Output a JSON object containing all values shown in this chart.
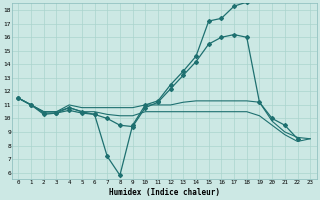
{
  "xlabel": "Humidex (Indice chaleur)",
  "bg_color": "#cce8e4",
  "grid_color": "#aad4ce",
  "line_color": "#1e7070",
  "xlim": [
    -0.5,
    23.5
  ],
  "ylim": [
    5.5,
    18.5
  ],
  "xticks": [
    0,
    1,
    2,
    3,
    4,
    5,
    6,
    7,
    8,
    9,
    10,
    11,
    12,
    13,
    14,
    15,
    16,
    17,
    18,
    19,
    20,
    21,
    22,
    23
  ],
  "yticks": [
    6,
    7,
    8,
    9,
    10,
    11,
    12,
    13,
    14,
    15,
    16,
    17,
    18
  ],
  "lines": [
    {
      "x": [
        0,
        1,
        2,
        3,
        4,
        5,
        6,
        7,
        8,
        9,
        10,
        11,
        12,
        13,
        14,
        15,
        16,
        17,
        18,
        19,
        20,
        21,
        22
      ],
      "y": [
        11.5,
        11.0,
        10.3,
        10.4,
        10.6,
        10.4,
        10.3,
        10.0,
        9.5,
        9.4,
        10.8,
        11.2,
        12.2,
        13.2,
        14.2,
        15.5,
        16.0,
        16.2,
        16.0,
        11.2,
        10.0,
        9.5,
        8.5
      ],
      "marker": true
    },
    {
      "x": [
        0,
        1,
        2,
        3,
        4,
        5,
        6,
        7,
        8,
        9,
        10,
        11,
        12,
        13,
        14,
        15,
        16,
        17,
        18
      ],
      "y": [
        11.5,
        11.0,
        10.4,
        10.4,
        10.8,
        10.5,
        10.3,
        7.2,
        5.8,
        9.5,
        11.0,
        11.3,
        12.5,
        13.5,
        14.6,
        17.2,
        17.4,
        18.3,
        18.6
      ],
      "marker": true
    },
    {
      "x": [
        0,
        1,
        2,
        3,
        4,
        5,
        6,
        7,
        8,
        9,
        10,
        11,
        12,
        13,
        14,
        15,
        16,
        17,
        18,
        19,
        20,
        21,
        22,
        23
      ],
      "y": [
        11.5,
        11.0,
        10.5,
        10.5,
        11.0,
        10.8,
        10.8,
        10.8,
        10.8,
        10.8,
        11.0,
        11.0,
        11.0,
        11.2,
        11.3,
        11.3,
        11.3,
        11.3,
        11.3,
        11.2,
        9.8,
        9.0,
        8.6,
        8.5
      ],
      "marker": false
    },
    {
      "x": [
        0,
        1,
        2,
        3,
        4,
        5,
        6,
        7,
        8,
        9,
        10,
        11,
        12,
        13,
        14,
        15,
        16,
        17,
        18,
        19,
        20,
        21,
        22,
        23
      ],
      "y": [
        11.5,
        11.0,
        10.5,
        10.5,
        10.8,
        10.5,
        10.5,
        10.3,
        10.2,
        10.2,
        10.5,
        10.5,
        10.5,
        10.5,
        10.5,
        10.5,
        10.5,
        10.5,
        10.5,
        10.2,
        9.5,
        8.8,
        8.3,
        8.5
      ],
      "marker": false
    }
  ]
}
